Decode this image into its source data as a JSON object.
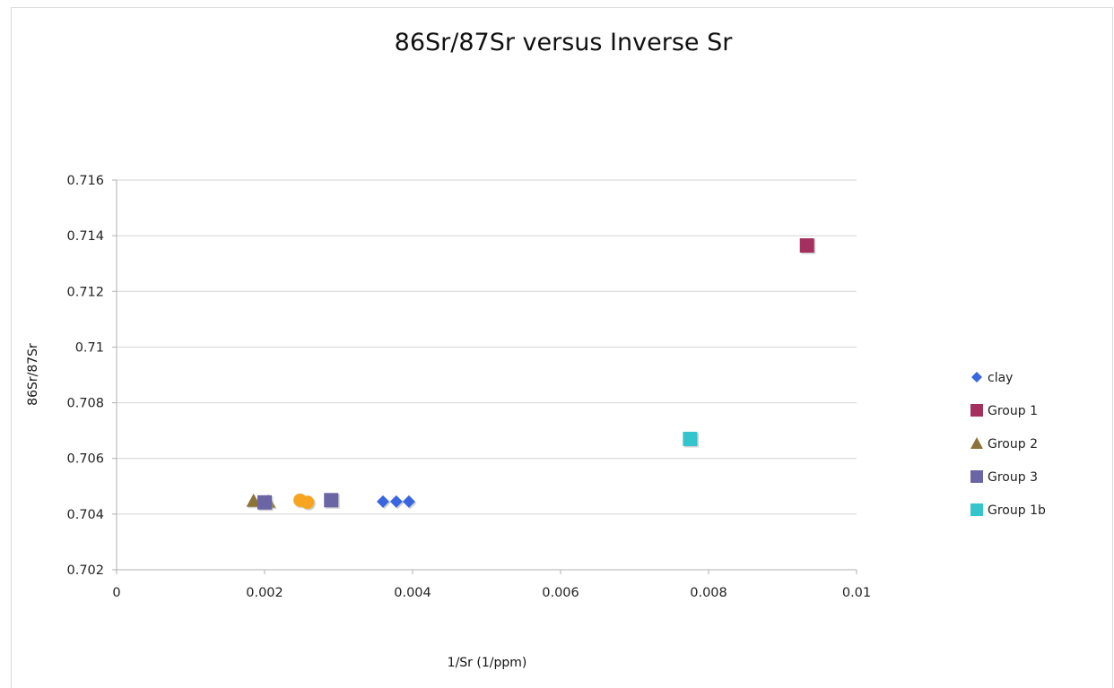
{
  "chart_data": {
    "type": "scatter",
    "title": "86Sr/87Sr versus Inverse Sr",
    "xlabel": "1/Sr (1/ppm)",
    "ylabel": "86Sr/87Sr",
    "xlim": [
      0,
      0.01
    ],
    "ylim": [
      0.702,
      0.716
    ],
    "x_ticks": [
      "0",
      "0.002",
      "0.004",
      "0.006",
      "0.008",
      "0.01"
    ],
    "y_ticks": [
      "0.702",
      "0.704",
      "0.706",
      "0.708",
      "0.71",
      "0.712",
      "0.714",
      "0.716"
    ],
    "grid": "horizontal",
    "legend_position": "right",
    "series": [
      {
        "name": "clay",
        "marker": "diamond",
        "color": "#3a66e0",
        "points": [
          [
            0.0036,
            0.70445
          ],
          [
            0.00378,
            0.70445
          ],
          [
            0.00395,
            0.70445
          ]
        ]
      },
      {
        "name": "Group 1",
        "marker": "square",
        "color": "#a3305f",
        "points": [
          [
            0.00933,
            0.71365
          ]
        ]
      },
      {
        "name": "Group 2",
        "marker": "triangle",
        "color": "#8c7438",
        "points": [
          [
            0.00185,
            0.70448
          ],
          [
            0.00205,
            0.70445
          ]
        ]
      },
      {
        "name": "Group 3",
        "marker": "square",
        "color": "#6a65a4",
        "points": [
          [
            0.002,
            0.70442
          ],
          [
            0.0029,
            0.7045
          ]
        ]
      },
      {
        "name": "Group 1b",
        "marker": "square",
        "color": "#33c4cc",
        "points": [
          [
            0.00775,
            0.7067
          ]
        ]
      },
      {
        "name": "",
        "marker": "circle",
        "color": "#f7a421",
        "points": [
          [
            0.00248,
            0.7045
          ],
          [
            0.00258,
            0.70442
          ]
        ]
      }
    ]
  }
}
